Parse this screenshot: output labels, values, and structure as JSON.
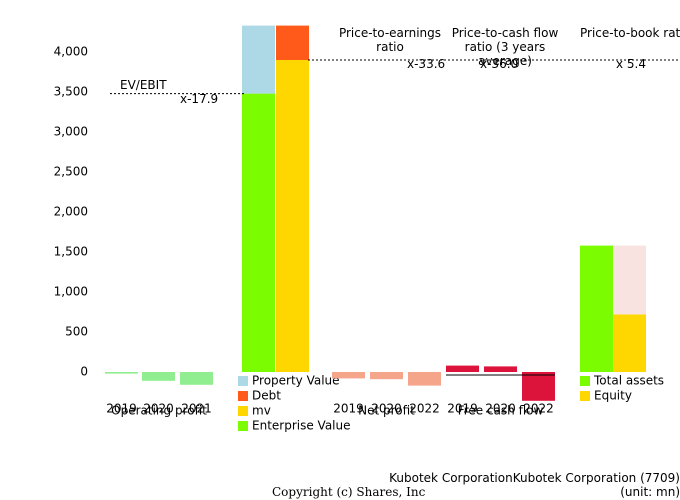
{
  "chart_data": {
    "type": "bar",
    "ylim": [
      -850,
      4400
    ],
    "yticks": [
      0,
      500,
      {
        "value": 1000,
        "label": "1,000"
      },
      {
        "value": 1500,
        "label": "1,500"
      },
      {
        "value": 2000,
        "label": "2,000"
      },
      {
        "value": 2500,
        "label": "2,500"
      },
      {
        "value": 3000,
        "label": "3,000"
      },
      {
        "value": 3500,
        "label": "3,500"
      },
      {
        "value": 4000,
        "label": "4,000"
      }
    ],
    "groups": [
      {
        "label": "Operating profit",
        "categories": [
          "2019",
          "2020",
          "2021"
        ],
        "values": [
          -20,
          -110,
          -160
        ],
        "color": "#90ee90"
      },
      {
        "stacks": [
          {
            "segments": [
              {
                "name": "Enterprise Value",
                "value": 3480,
                "color": "#7cfc00"
              },
              {
                "name": "Property Value",
                "value": 850,
                "color": "#add8e6"
              }
            ]
          },
          {
            "segments": [
              {
                "name": "mv",
                "value": 3900,
                "color": "#ffd700"
              },
              {
                "name": "Debt",
                "value": 430,
                "color": "#ff5a1a"
              }
            ]
          }
        ]
      },
      {
        "label": "Net profit",
        "categories": [
          "2019",
          "2020",
          "2022"
        ],
        "values": [
          -80,
          -90,
          -170
        ],
        "color": "#f4a58a"
      },
      {
        "label": "Free cash flow",
        "categories": [
          "2019",
          "2020",
          "2022"
        ],
        "values": [
          80,
          70,
          -360
        ],
        "color": "#dc143c"
      },
      {
        "stacks": [
          {
            "segments": [
              {
                "name": "Total assets",
                "value": 1580,
                "color": "#7cfc00"
              }
            ]
          },
          {
            "segments": [
              {
                "name": "Equity",
                "value": 720,
                "color": "#ffd700"
              },
              {
                "value": 860,
                "color": "#f9e3e0"
              }
            ]
          }
        ]
      }
    ],
    "ratios": [
      {
        "label": "EV/EBIT",
        "value": "x-17.9"
      },
      {
        "label": "Price-to-earnings ratio",
        "value": "x-33.6"
      },
      {
        "label": "Price-to-cash flow ratio (3 years average)",
        "value": "x-36.0"
      },
      {
        "label": "Price-to-book ratio",
        "value": "x 5.4"
      }
    ],
    "company": "Kubotek CorporationKubotek Corporation (7709)",
    "unit": "(unit: mn)",
    "copyright": "Copyright (c) Shares, Inc"
  }
}
